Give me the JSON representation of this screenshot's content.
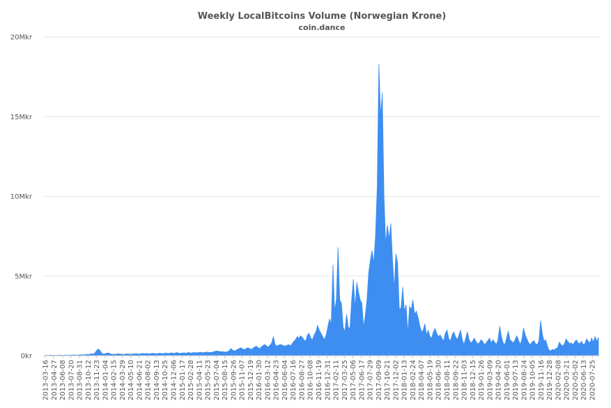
{
  "chart_data": {
    "type": "area",
    "title": "Weekly LocalBitcoins Volume (Norwegian Krone)",
    "subtitle": "coin.dance",
    "xlabel": "",
    "ylabel": "",
    "ylim": [
      0,
      20000000
    ],
    "yticks": [
      {
        "value": 0,
        "label": "0kr"
      },
      {
        "value": 5000000,
        "label": "5Mkr"
      },
      {
        "value": 10000000,
        "label": "10Mkr"
      },
      {
        "value": 15000000,
        "label": "15Mkr"
      },
      {
        "value": 20000000,
        "label": "20Mkr"
      }
    ],
    "xticks": [
      "2013-03-16",
      "2013-04-27",
      "2013-06-08",
      "2013-07-20",
      "2013-08-31",
      "2013-10-12",
      "2013-11-23",
      "2014-01-04",
      "2014-02-15",
      "2014-03-29",
      "2014-05-10",
      "2014-06-21",
      "2014-08-02",
      "2014-09-13",
      "2014-10-25",
      "2014-12-06",
      "2015-01-17",
      "2015-02-28",
      "2015-04-11",
      "2015-05-23",
      "2015-07-04",
      "2015-08-15",
      "2015-09-26",
      "2015-11-07",
      "2015-12-19",
      "2016-01-30",
      "2016-03-12",
      "2016-04-23",
      "2016-06-04",
      "2016-07-16",
      "2016-08-27",
      "2016-10-08",
      "2016-11-19",
      "2016-12-31",
      "2017-02-11",
      "2017-03-25",
      "2017-05-06",
      "2017-06-17",
      "2017-07-29",
      "2017-09-09",
      "2017-10-21",
      "2017-12-02",
      "2018-01-13",
      "2018-02-24",
      "2018-04-07",
      "2018-05-19",
      "2018-06-30",
      "2018-08-11",
      "2018-09-22",
      "2018-11-03",
      "2018-12-15",
      "2019-01-26",
      "2019-03-09",
      "2019-04-20",
      "2019-06-01",
      "2019-07-13",
      "2019-08-24",
      "2019-10-05",
      "2019-11-16",
      "2019-12-28",
      "2020-02-08",
      "2020-03-21",
      "2020-05-02",
      "2020-06-13",
      "2020-07-25"
    ],
    "grid": true,
    "legend": "none",
    "color": "#3d8ef0",
    "series": [
      {
        "name": "",
        "values": [
          0.02,
          0.02,
          0.02,
          0.03,
          0.03,
          0.02,
          0.02,
          0.02,
          0.03,
          0.03,
          0.02,
          0.03,
          0.04,
          0.03,
          0.03,
          0.04,
          0.04,
          0.05,
          0.04,
          0.04,
          0.05,
          0.06,
          0.05,
          0.06,
          0.08,
          0.07,
          0.09,
          0.12,
          0.1,
          0.15,
          0.3,
          0.42,
          0.35,
          0.18,
          0.1,
          0.12,
          0.15,
          0.18,
          0.12,
          0.1,
          0.08,
          0.09,
          0.1,
          0.12,
          0.1,
          0.09,
          0.08,
          0.1,
          0.12,
          0.1,
          0.09,
          0.1,
          0.11,
          0.13,
          0.12,
          0.1,
          0.12,
          0.15,
          0.12,
          0.14,
          0.13,
          0.12,
          0.13,
          0.15,
          0.14,
          0.12,
          0.13,
          0.15,
          0.14,
          0.13,
          0.15,
          0.17,
          0.14,
          0.15,
          0.18,
          0.16,
          0.15,
          0.2,
          0.17,
          0.15,
          0.16,
          0.18,
          0.17,
          0.16,
          0.2,
          0.18,
          0.17,
          0.2,
          0.19,
          0.18,
          0.2,
          0.22,
          0.2,
          0.19,
          0.21,
          0.23,
          0.21,
          0.2,
          0.22,
          0.25,
          0.28,
          0.3,
          0.27,
          0.25,
          0.26,
          0.24,
          0.23,
          0.25,
          0.3,
          0.45,
          0.35,
          0.3,
          0.33,
          0.4,
          0.45,
          0.5,
          0.42,
          0.38,
          0.45,
          0.5,
          0.45,
          0.4,
          0.45,
          0.55,
          0.6,
          0.5,
          0.45,
          0.55,
          0.65,
          0.7,
          0.6,
          0.55,
          0.65,
          0.8,
          1.2,
          0.7,
          0.6,
          0.65,
          0.7,
          0.68,
          0.62,
          0.6,
          0.65,
          0.7,
          0.6,
          0.75,
          0.9,
          1.0,
          1.2,
          1.1,
          1.25,
          1.15,
          1.0,
          0.9,
          1.3,
          1.4,
          1.1,
          1.0,
          1.3,
          1.5,
          1.9,
          1.6,
          1.4,
          1.2,
          1.0,
          1.3,
          1.8,
          2.3,
          2.0,
          5.7,
          2.8,
          3.5,
          6.8,
          3.5,
          3.3,
          1.8,
          1.5,
          2.6,
          1.8,
          1.7,
          3.5,
          4.8,
          3.0,
          4.6,
          4.0,
          3.5,
          3.3,
          1.8,
          2.5,
          3.5,
          5.2,
          6.0,
          6.6,
          5.8,
          7.5,
          10.5,
          18.3,
          15.0,
          16.5,
          10.0,
          7.0,
          8.2,
          7.3,
          8.3,
          6.0,
          4.2,
          6.4,
          5.8,
          2.9,
          3.0,
          4.3,
          2.8,
          3.2,
          1.4,
          3.1,
          2.9,
          3.5,
          2.6,
          2.8,
          2.4,
          1.9,
          1.5,
          1.6,
          2.0,
          1.3,
          1.6,
          1.2,
          1.1,
          1.5,
          1.7,
          1.4,
          1.2,
          1.3,
          1.1,
          0.9,
          1.4,
          1.6,
          1.1,
          0.9,
          1.3,
          1.5,
          1.2,
          1.0,
          1.3,
          1.6,
          1.0,
          0.7,
          1.1,
          1.5,
          1.0,
          0.8,
          0.9,
          1.1,
          0.9,
          0.75,
          0.8,
          1.0,
          0.9,
          0.7,
          0.8,
          0.95,
          1.1,
          0.8,
          1.0,
          0.85,
          0.7,
          1.0,
          1.85,
          1.2,
          0.8,
          0.7,
          1.1,
          1.55,
          1.0,
          0.9,
          0.8,
          1.0,
          1.25,
          1.0,
          0.7,
          1.0,
          1.75,
          1.3,
          1.05,
          0.8,
          0.7,
          0.85,
          0.95,
          0.75,
          0.7,
          0.9,
          2.2,
          1.4,
          0.9,
          1.0,
          0.6,
          0.35,
          0.3,
          0.4,
          0.35,
          0.45,
          0.5,
          0.85,
          0.7,
          0.6,
          0.75,
          1.05,
          0.9,
          0.75,
          0.8,
          0.7,
          0.85,
          1.0,
          0.8,
          0.75,
          0.9,
          0.7,
          0.75,
          1.05,
          0.9,
          0.8,
          1.1,
          0.85,
          1.2,
          0.9,
          1.15
        ]
      }
    ],
    "value_unit_multiplier": 1000000
  }
}
